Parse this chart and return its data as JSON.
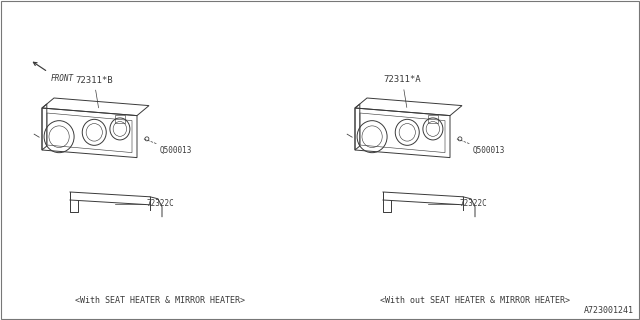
{
  "bg_color": "#ffffff",
  "line_color": "#3a3a3a",
  "diagram_id": "A723001241",
  "left_label": "<With SEAT HEATER & MIRROR HEATER>",
  "right_label": "<With out SEAT HEATER & MIRROR HEATER>",
  "left_part": "72311*B",
  "right_part": "72311*A",
  "screw_label": "Q500013",
  "bracket_label": "72322C",
  "front_label": "FRONT",
  "lw": 0.7,
  "font_size_label": 6.5,
  "font_size_caption": 6.0,
  "font_size_id": 6.0
}
